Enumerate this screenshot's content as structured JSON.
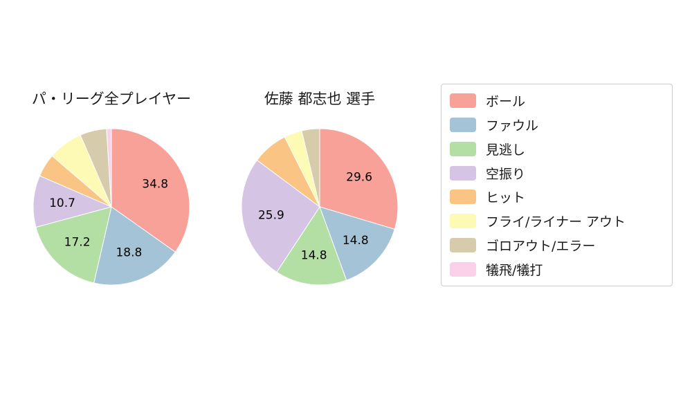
{
  "chart_data": [
    {
      "type": "pie",
      "title": "パ・リーグ全プレイヤー",
      "labels": [
        "ボール",
        "ファウル",
        "見逃し",
        "空振り",
        "ヒット",
        "フライ/ライナー アウト",
        "ゴロアウト/エラー",
        "犠飛/犠打"
      ],
      "values": [
        34.8,
        18.8,
        17.2,
        10.7,
        4.8,
        7.2,
        5.5,
        1.0
      ],
      "colors": [
        "#f7a199",
        "#a5c3d6",
        "#b3dfa5",
        "#d5c4e3",
        "#fac584",
        "#fcfab4",
        "#d6cbaa",
        "#fad1e8"
      ],
      "start_angle_deg": 0,
      "direction": "clockwise",
      "label_threshold": 10,
      "legend_position": "right"
    },
    {
      "type": "pie",
      "title": "佐藤 都志也 選手",
      "labels": [
        "ボール",
        "ファウル",
        "見逃し",
        "空振り",
        "ヒット",
        "フライ/ライナー アウト",
        "ゴロアウト/エラー",
        "犠飛/犠打"
      ],
      "values": [
        29.6,
        14.8,
        14.8,
        25.9,
        7.4,
        3.7,
        3.7,
        0.0
      ],
      "colors": [
        "#f7a199",
        "#a5c3d6",
        "#b3dfa5",
        "#d5c4e3",
        "#fac584",
        "#fcfab4",
        "#d6cbaa",
        "#fad1e8"
      ],
      "start_angle_deg": 0,
      "direction": "clockwise",
      "label_threshold": 10,
      "legend_position": "right"
    }
  ],
  "legend": {
    "items": [
      {
        "label": "ボール",
        "color": "#f7a199"
      },
      {
        "label": "ファウル",
        "color": "#a5c3d6"
      },
      {
        "label": "見逃し",
        "color": "#b3dfa5"
      },
      {
        "label": "空振り",
        "color": "#d5c4e3"
      },
      {
        "label": "ヒット",
        "color": "#fac584"
      },
      {
        "label": "フライ/ライナー アウト",
        "color": "#fcfab4"
      },
      {
        "label": "ゴロアウト/エラー",
        "color": "#d6cbaa"
      },
      {
        "label": "犠飛/犠打",
        "color": "#fad1e8"
      }
    ]
  }
}
